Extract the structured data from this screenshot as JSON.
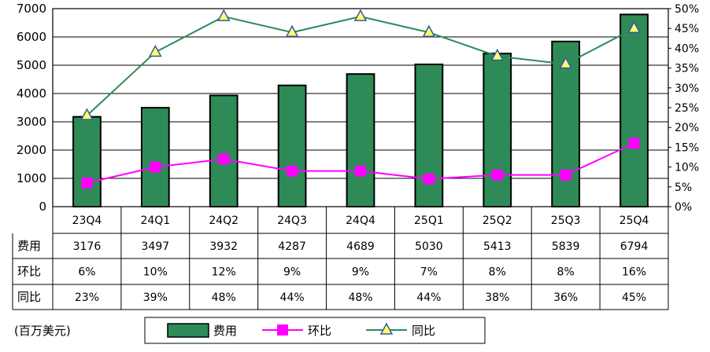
{
  "chart_data": {
    "type": "bar",
    "categories": [
      "23Q4",
      "24Q1",
      "24Q2",
      "24Q3",
      "24Q4",
      "25Q1",
      "25Q2",
      "25Q3",
      "25Q4"
    ],
    "series": [
      {
        "name": "费用",
        "kind": "bar",
        "axis": "left",
        "color": "#2e8b57",
        "values": [
          3176,
          3497,
          3932,
          4287,
          4689,
          5030,
          5413,
          5839,
          6794
        ]
      },
      {
        "name": "环比",
        "kind": "line",
        "axis": "right",
        "color": "#ff00ff",
        "marker": "square",
        "values": [
          6,
          10,
          12,
          9,
          9,
          7,
          8,
          8,
          16
        ]
      },
      {
        "name": "同比",
        "kind": "line",
        "axis": "right",
        "color": "#2e8b57",
        "marker": "triangle",
        "values": [
          23,
          39,
          48,
          44,
          48,
          44,
          38,
          36,
          45
        ]
      }
    ],
    "y_left": {
      "min": 0,
      "max": 7000,
      "ticks": [
        "0",
        "1000",
        "2000",
        "3000",
        "4000",
        "5000",
        "6000",
        "7000"
      ]
    },
    "y_right": {
      "min": 0,
      "max": 50,
      "unit": "%",
      "ticks": [
        "0%",
        "5%",
        "10%",
        "15%",
        "20%",
        "25%",
        "30%",
        "35%",
        "40%",
        "45%",
        "50%"
      ]
    },
    "grid": true,
    "legend_position": "bottom"
  },
  "table": {
    "rows": [
      {
        "label": "费用",
        "cells": [
          "3176",
          "3497",
          "3932",
          "4287",
          "4689",
          "5030",
          "5413",
          "5839",
          "6794"
        ]
      },
      {
        "label": "环比",
        "cells": [
          "6%",
          "10%",
          "12%",
          "9%",
          "9%",
          "7%",
          "8%",
          "8%",
          "16%"
        ]
      },
      {
        "label": "同比",
        "cells": [
          "23%",
          "39%",
          "48%",
          "44%",
          "48%",
          "44%",
          "38%",
          "36%",
          "45%"
        ]
      }
    ]
  },
  "unit_label": "(百万美元)",
  "legend": {
    "items": [
      "费用",
      "环比",
      "同比"
    ]
  },
  "colors": {
    "bar": "#2e8b57",
    "qoq": "#ff00ff",
    "yoy": "#2e8b57",
    "triangle_fill": "#ffff66",
    "triangle_stroke": "#3355aa"
  }
}
